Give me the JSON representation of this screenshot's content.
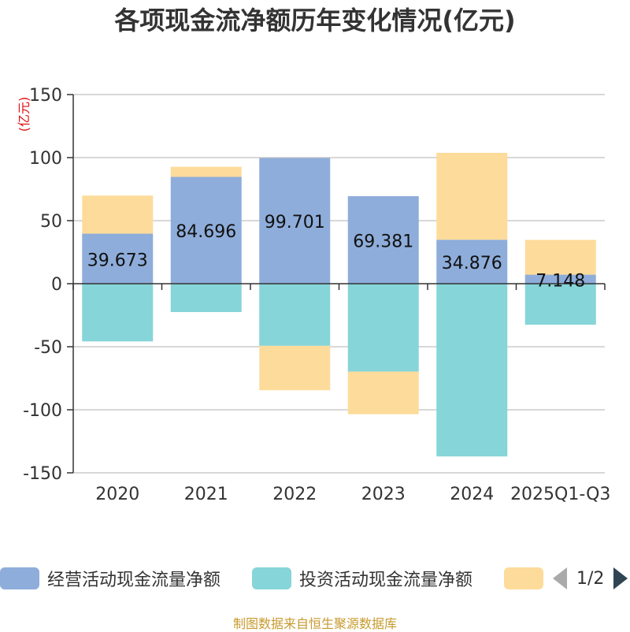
{
  "chart_data": {
    "type": "bar",
    "stacked": true,
    "title": "各项现金流净额历年变化情况(亿元)",
    "ylabel": "(亿元)",
    "categories": [
      "2020",
      "2021",
      "2022",
      "2023",
      "2024",
      "2025Q1-Q3"
    ],
    "ylim": [
      -150,
      150
    ],
    "yticks": [
      150,
      100,
      50,
      0,
      -50,
      -100,
      -150
    ],
    "grid": true,
    "legend_position": "bottom",
    "series": [
      {
        "name": "经营活动现金流量净额",
        "color": "#8eadda",
        "values": [
          39.673,
          84.696,
          99.701,
          69.381,
          34.876,
          7.148
        ]
      },
      {
        "name": "投资活动现金流量净额",
        "color": "#86d5d8",
        "values": [
          -45.8,
          -22.5,
          -49.3,
          -69.7,
          -137.0,
          -32.5
        ]
      },
      {
        "name": "",
        "color": "#fddb9a",
        "values": [
          30.2,
          8.0,
          -35.2,
          -33.8,
          68.9,
          27.6
        ]
      }
    ],
    "data_labels": [
      "39.673",
      "84.696",
      "99.701",
      "69.381",
      "34.876",
      "7.148"
    ]
  },
  "legend": {
    "items": [
      {
        "label": "经营活动现金流量净额",
        "color": "#8eadda"
      },
      {
        "label": "投资活动现金流量净额",
        "color": "#86d5d8"
      },
      {
        "label": "",
        "color": "#fddb9a"
      }
    ],
    "page": "1/2"
  },
  "footer": {
    "source": "制图数据来自恒生聚源数据库"
  }
}
